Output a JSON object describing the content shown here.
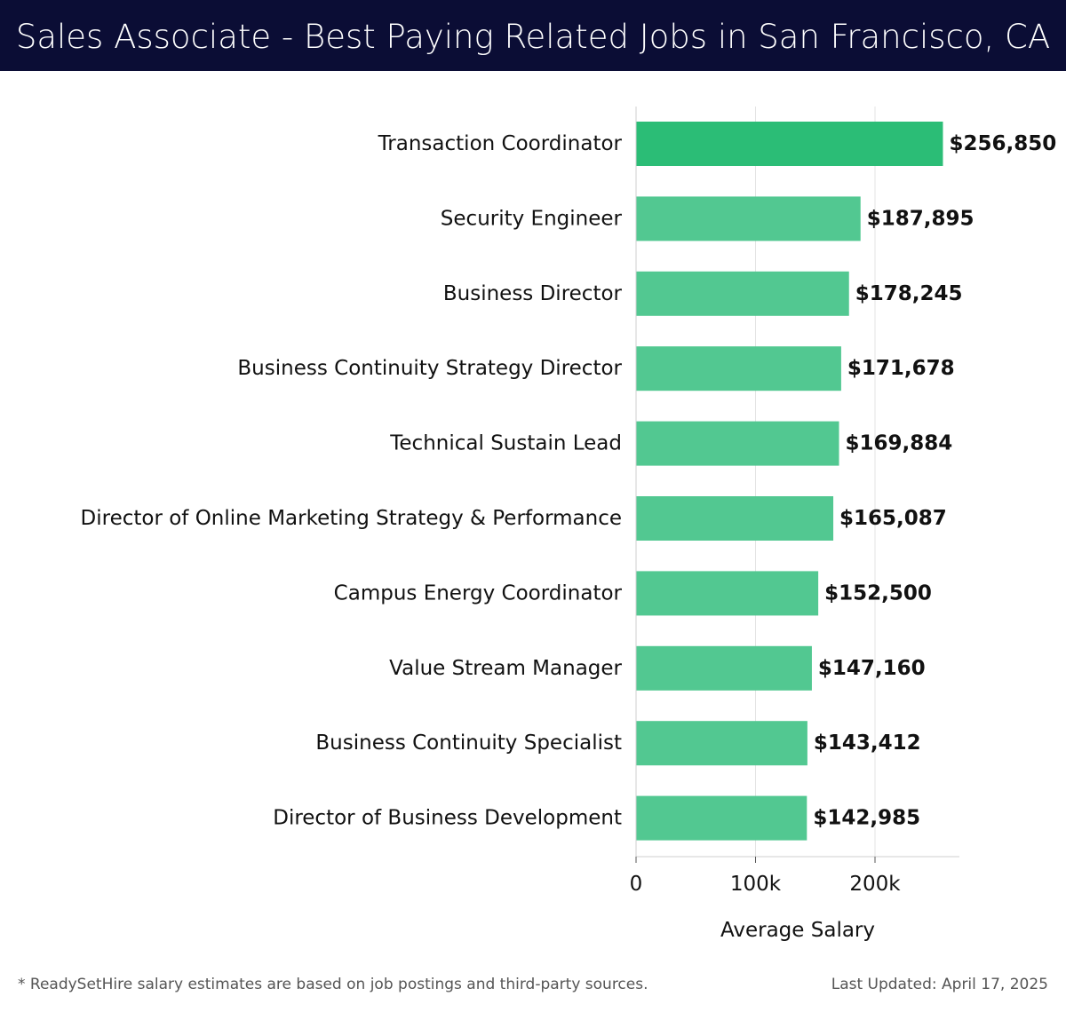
{
  "header": {
    "title": "Sales Associate - Best Paying Related Jobs in San Francisco, CA"
  },
  "chart_data": {
    "type": "bar",
    "orientation": "horizontal",
    "title": "Sales Associate - Best Paying Related Jobs in San Francisco, CA",
    "xlabel": "Average Salary",
    "ylabel": "",
    "xlim": [
      0,
      270000
    ],
    "grid": true,
    "categories": [
      "Transaction Coordinator",
      "Security Engineer",
      "Business Director",
      "Business Continuity Strategy Director",
      "Technical Sustain Lead",
      "Director of Online Marketing Strategy & Performance",
      "Campus Energy Coordinator",
      "Value Stream Manager",
      "Business Continuity Specialist",
      "Director of Business Development"
    ],
    "values": [
      256850,
      187895,
      178245,
      171678,
      169884,
      165087,
      152500,
      147160,
      143412,
      142985
    ],
    "value_labels": [
      "$256,850",
      "$187,895",
      "$178,245",
      "$171,678",
      "$169,884",
      "$165,087",
      "$152,500",
      "$147,160",
      "$143,412",
      "$142,985"
    ],
    "x_ticks": [
      {
        "value": 0,
        "label": "0"
      },
      {
        "value": 100000,
        "label": "100k"
      },
      {
        "value": 200000,
        "label": "200k"
      }
    ],
    "colors": {
      "top_bar": "#2bbd76",
      "bar": "#52c891",
      "header_bg": "#0b0d35"
    }
  },
  "footer": {
    "note": "* ReadySetHire salary estimates are based on job postings and third-party sources.",
    "updated": "Last Updated: April 17, 2025"
  }
}
